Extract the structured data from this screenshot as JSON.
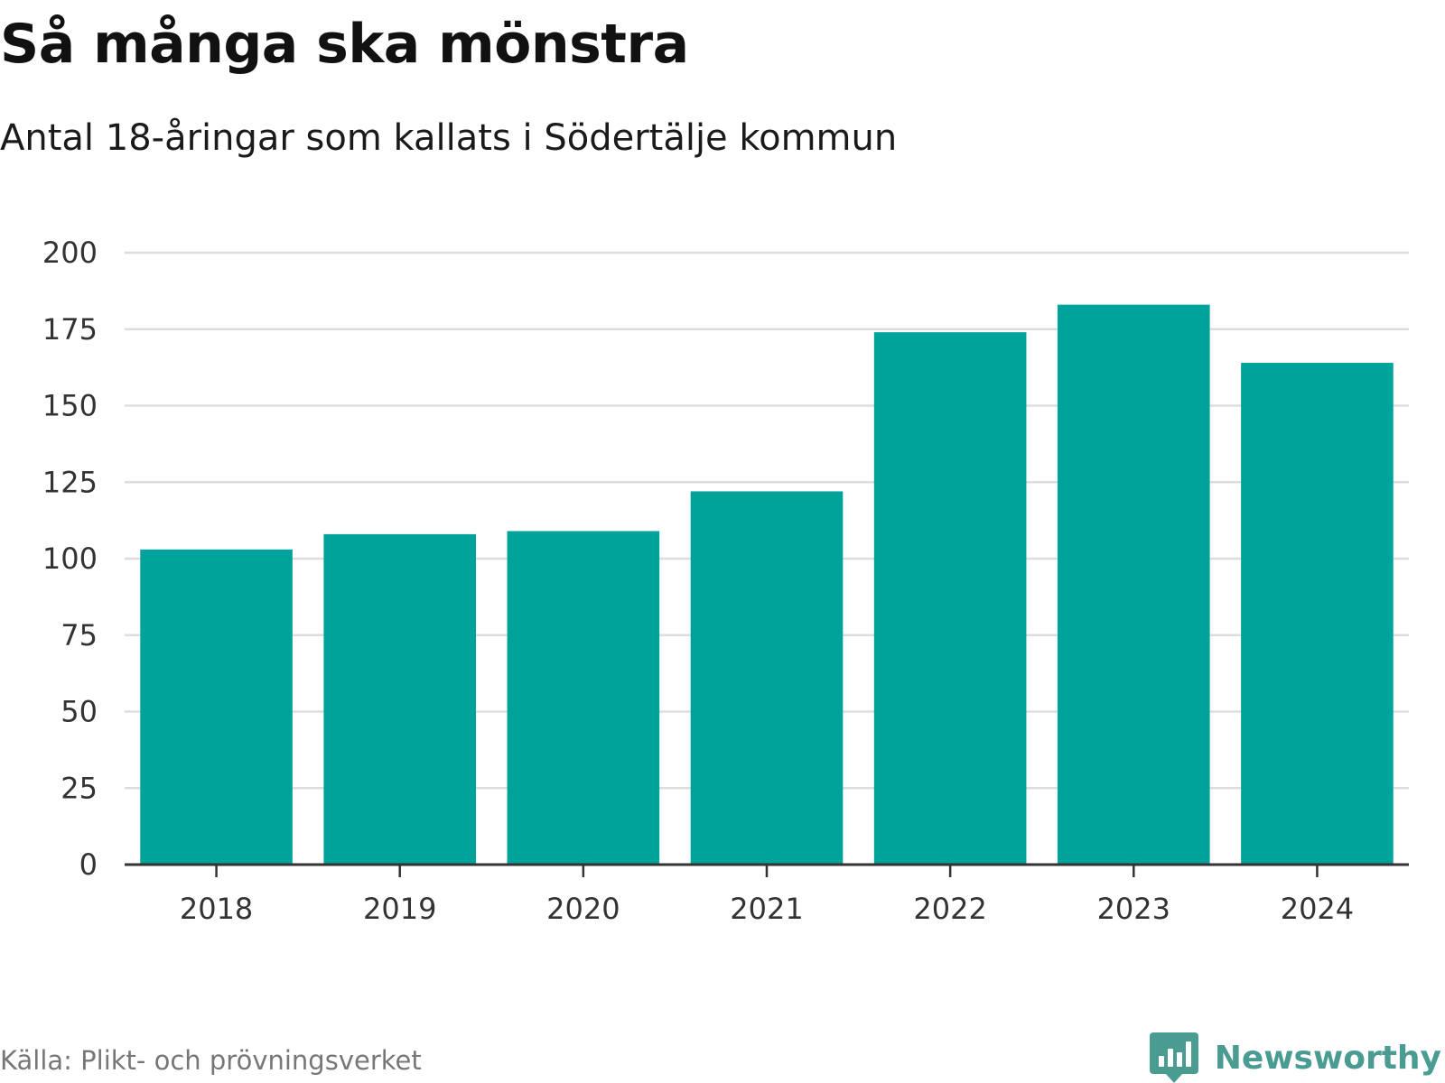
{
  "title": "Så många ska mönstra",
  "subtitle": "Antal 18-åringar som kallats i Södertälje kommun",
  "source": "Källa: Plikt- och prövningsverket",
  "brand": {
    "name": "Newsworthy",
    "logo_icon": "newsworthy-bar-chart-bubble-icon",
    "color": "#4a9c92"
  },
  "colors": {
    "bar": "#00a39a",
    "grid": "#dddddd",
    "axis": "#333333"
  },
  "chart_data": {
    "type": "bar",
    "title": "Så många ska mönstra",
    "subtitle": "Antal 18-åringar som kallats i Södertälje kommun",
    "categories": [
      "2018",
      "2019",
      "2020",
      "2021",
      "2022",
      "2023",
      "2024"
    ],
    "values": [
      103,
      108,
      109,
      122,
      174,
      183,
      164
    ],
    "ylim": [
      0,
      200
    ],
    "yticks": [
      0,
      25,
      50,
      75,
      100,
      125,
      150,
      175,
      200
    ],
    "xlabel": "",
    "ylabel": "",
    "grid": true,
    "legend": "none"
  }
}
